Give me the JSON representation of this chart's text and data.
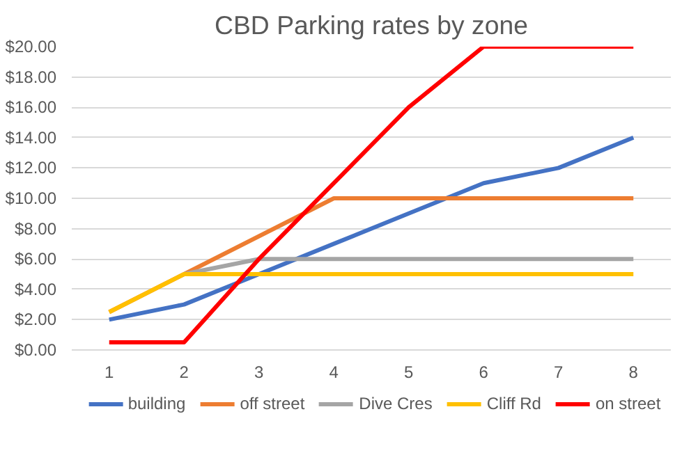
{
  "chart_data": {
    "type": "line",
    "title": "CBD Parking rates by zone",
    "categories": [
      "1",
      "2",
      "3",
      "4",
      "5",
      "6",
      "7",
      "8"
    ],
    "series": [
      {
        "name": "building",
        "color": "#4472c4",
        "values": [
          2,
          3,
          5,
          7,
          9,
          11,
          12,
          14
        ]
      },
      {
        "name": "off street",
        "color": "#ed7d31",
        "values": [
          2.5,
          5,
          7.5,
          10,
          10,
          10,
          10,
          10
        ]
      },
      {
        "name": "Dive Cres",
        "color": "#a5a5a5",
        "values": [
          null,
          5,
          6,
          6,
          6,
          6,
          6,
          6
        ]
      },
      {
        "name": "Cliff Rd",
        "color": "#ffc000",
        "values": [
          2.5,
          5,
          5,
          5,
          5,
          5,
          5,
          5
        ]
      },
      {
        "name": "on street",
        "color": "#ff0000",
        "values": [
          0.5,
          0.5,
          6,
          11,
          16,
          20,
          20,
          20
        ]
      }
    ],
    "ylim": [
      0,
      20
    ],
    "yticks": [
      {
        "value": 0,
        "label": "$0.00"
      },
      {
        "value": 2,
        "label": "$2.00"
      },
      {
        "value": 4,
        "label": "$4.00"
      },
      {
        "value": 6,
        "label": "$6.00"
      },
      {
        "value": 8,
        "label": "$8.00"
      },
      {
        "value": 10,
        "label": "$10.00"
      },
      {
        "value": 12,
        "label": "$12.00"
      },
      {
        "value": 14,
        "label": "$14.00"
      },
      {
        "value": 16,
        "label": "$16.00"
      },
      {
        "value": 18,
        "label": "$18.00"
      },
      {
        "value": 20,
        "label": "$20.00"
      }
    ],
    "grid": "y",
    "legend": "bottom",
    "marker": "none",
    "line_style": "solid"
  }
}
